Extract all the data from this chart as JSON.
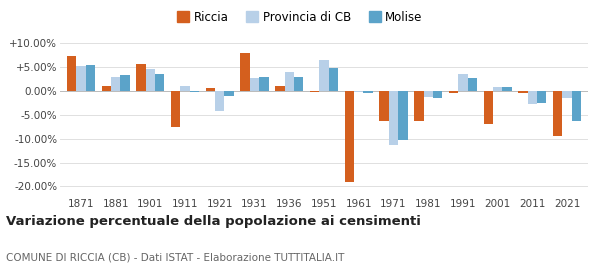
{
  "years": [
    1871,
    1881,
    1901,
    1911,
    1921,
    1931,
    1936,
    1951,
    1961,
    1971,
    1981,
    1991,
    2001,
    2011,
    2021
  ],
  "riccia": [
    7.3,
    1.1,
    5.7,
    -7.5,
    0.7,
    8.0,
    1.0,
    -0.2,
    -19.0,
    -6.2,
    -6.3,
    -0.5,
    -7.0,
    -0.5,
    -9.5
  ],
  "provincia_cb": [
    5.2,
    3.0,
    4.5,
    1.1,
    -4.2,
    2.8,
    3.9,
    6.5,
    -0.3,
    -11.4,
    -1.2,
    3.5,
    0.9,
    -2.8,
    -1.5
  ],
  "molise": [
    5.4,
    3.3,
    3.5,
    -0.3,
    -1.0,
    2.9,
    2.9,
    4.9,
    -0.4,
    -10.3,
    -1.4,
    2.8,
    0.8,
    -2.5,
    -6.3
  ],
  "color_riccia": "#d45f1e",
  "color_provincia": "#b8d0e8",
  "color_molise": "#5ba3c9",
  "title": "Variazione percentuale della popolazione ai censimenti",
  "subtitle": "COMUNE DI RICCIA (CB) - Dati ISTAT - Elaborazione TUTTITALIA.IT",
  "ylim": [
    -22,
    12
  ],
  "yticks": [
    -20.0,
    -15.0,
    -10.0,
    -5.0,
    0.0,
    5.0,
    10.0
  ],
  "ytick_labels": [
    "-20.00%",
    "-15.00%",
    "-10.00%",
    "-5.00%",
    "0.00%",
    "+5.00%",
    "+10.00%"
  ],
  "background_color": "#ffffff",
  "grid_color": "#e0e0e0",
  "bar_width": 0.27,
  "legend_marker_size": 12,
  "legend_fontsize": 8.5,
  "tick_fontsize": 7.5,
  "title_fontsize": 9.5,
  "subtitle_fontsize": 7.5
}
